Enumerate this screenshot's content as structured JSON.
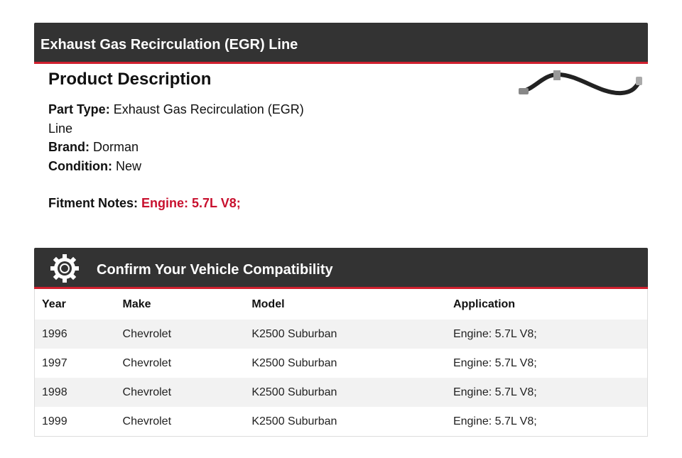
{
  "header": {
    "title": "Exhaust Gas Recirculation (EGR) Line"
  },
  "description": {
    "heading": "Product Description",
    "fields": [
      {
        "label": "Part Type:",
        "value": "Exhaust Gas Recirculation (EGR) Line"
      },
      {
        "label": "Brand:",
        "value": "Dorman"
      },
      {
        "label": "Condition:",
        "value": "New"
      }
    ],
    "fitment": {
      "label": "Fitment Notes:",
      "value": "Engine: 5.7L V8;"
    }
  },
  "compatibility": {
    "title": "Confirm Your Vehicle Compatibility"
  },
  "table": {
    "columns": [
      "Year",
      "Make",
      "Model",
      "Application"
    ],
    "rows": [
      [
        "1996",
        "Chevrolet",
        "K2500 Suburban",
        "Engine: 5.7L V8;"
      ],
      [
        "1997",
        "Chevrolet",
        "K2500 Suburban",
        "Engine: 5.7L V8;"
      ],
      [
        "1998",
        "Chevrolet",
        "K2500 Suburban",
        "Engine: 5.7L V8;"
      ],
      [
        "1999",
        "Chevrolet",
        "K2500 Suburban",
        "Engine: 5.7L V8;"
      ]
    ]
  }
}
